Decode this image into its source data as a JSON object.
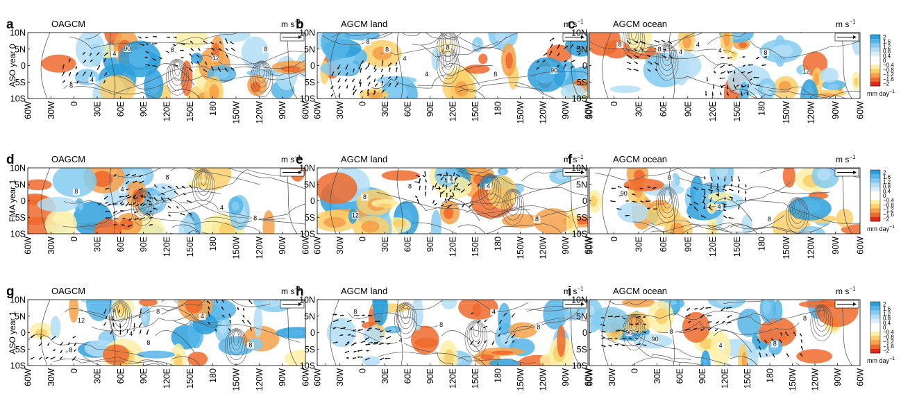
{
  "figure": {
    "row_labels": [
      "ASO year 0",
      "FMA year 1",
      "ASO year 1"
    ],
    "units_label": "m s",
    "units_exp": "−1",
    "colorbar": {
      "ticks": [
        "2",
        "1.6",
        "1.2",
        "0.8",
        "0.4",
        "0",
        "−0.4",
        "−0.8",
        "−1.2",
        "−1.6",
        "−2"
      ],
      "unit_label": "mm day",
      "unit_exp": "−1",
      "colors_top_to_bottom": [
        "#2c9fdb",
        "#55b5e8",
        "#84cbf0",
        "#b3def5",
        "#d8eefa",
        "#ffffff",
        "#ffffff",
        "#fdf0a6",
        "#fbcf6a",
        "#f6a14a",
        "#ee6a2d",
        "#e0281f"
      ]
    },
    "vector_colors": {
      "wind": "#000000",
      "contour": "#555555",
      "land": "#444444"
    }
  },
  "chart_data": [
    {
      "label": "a",
      "title": "OAGCM",
      "type": "heatmap",
      "x_ticks": [
        "60W",
        "30W",
        "0",
        "30E",
        "60E",
        "90E",
        "120E",
        "150E",
        "180",
        "150W",
        "120W",
        "90W",
        "60W"
      ],
      "y_ticks": [
        "10N",
        "5N",
        "0",
        "5S",
        "10S"
      ],
      "contour_labels": [
        "8",
        "4",
        "8",
        "12",
        "8",
        "4",
        "90"
      ]
    },
    {
      "label": "b",
      "title": "AGCM land",
      "type": "heatmap",
      "x_ticks": [
        "60W",
        "30W",
        "0",
        "30E",
        "60E",
        "90E",
        "120E",
        "150E",
        "180",
        "150W",
        "120W",
        "90W",
        "60W"
      ],
      "y_ticks": [
        "10N",
        "5N",
        "0",
        "5S",
        "10S"
      ],
      "contour_labels": [
        "8",
        "4",
        "8",
        "8",
        "90",
        "8",
        "4"
      ]
    },
    {
      "label": "c",
      "title": "AGCM ocean",
      "type": "heatmap",
      "x_ticks": [
        "30W",
        "0",
        "30E",
        "60E",
        "90E",
        "120E",
        "150E",
        "180",
        "150W",
        "120W",
        "90W",
        "60W"
      ],
      "y_ticks": [
        "10N",
        "5N",
        "0",
        "5S",
        "10S"
      ],
      "contour_labels": [
        "8",
        "4",
        "4",
        "8",
        "12",
        "8",
        "4"
      ]
    },
    {
      "label": "d",
      "title": "OAGCM",
      "type": "heatmap",
      "x_ticks": [
        "60W",
        "30W",
        "0",
        "30E",
        "60E",
        "90E",
        "120E",
        "150E",
        "180",
        "150W",
        "120W",
        "90W",
        "60W"
      ],
      "y_ticks": [
        "10N",
        "5N",
        "0",
        "5S",
        "10S"
      ],
      "contour_labels": [
        "8",
        "4",
        "8",
        "4",
        "8"
      ]
    },
    {
      "label": "e",
      "title": "AGCM land",
      "type": "heatmap",
      "x_ticks": [
        "60W",
        "30W",
        "0",
        "30E",
        "60E",
        "90E",
        "120E",
        "150E",
        "180",
        "150W",
        "120W",
        "90W",
        "60W"
      ],
      "y_ticks": [
        "10N",
        "5N",
        "0",
        "5S",
        "10S"
      ],
      "contour_labels": [
        "12",
        "8",
        "4",
        "4",
        "8",
        "8"
      ]
    },
    {
      "label": "f",
      "title": "AGCM ocean",
      "type": "heatmap",
      "x_ticks": [
        "30W",
        "0",
        "30E",
        "60E",
        "90E",
        "120E",
        "150E",
        "180",
        "150W",
        "120W",
        "90W",
        "60W"
      ],
      "y_ticks": [
        "10N",
        "5N",
        "0",
        "5S",
        "10S"
      ],
      "contour_labels": [
        "90",
        "8",
        "4",
        "8"
      ]
    },
    {
      "label": "g",
      "title": "OAGCM",
      "type": "heatmap",
      "x_ticks": [
        "60W",
        "30W",
        "0",
        "30E",
        "60E",
        "90E",
        "120E",
        "150E",
        "180",
        "150W",
        "120W",
        "90W",
        "60W"
      ],
      "y_ticks": [
        "10N",
        "5N",
        "0",
        "5S",
        "10S"
      ],
      "contour_labels": [
        "8",
        "4",
        "8",
        "4",
        "8",
        "12",
        "8"
      ]
    },
    {
      "label": "h",
      "title": "AGCM land",
      "type": "heatmap",
      "x_ticks": [
        "60W",
        "30W",
        "0",
        "30E",
        "60E",
        "90E",
        "120E",
        "150E",
        "180",
        "150W",
        "120W",
        "90W",
        "60W"
      ],
      "y_ticks": [
        "10N",
        "5N",
        "0",
        "5S",
        "10S"
      ],
      "contour_labels": [
        "8",
        "4",
        "8",
        "4",
        "8"
      ]
    },
    {
      "label": "i",
      "title": "AGCM ocean",
      "type": "heatmap",
      "x_ticks": [
        "60W",
        "30W",
        "0",
        "30E",
        "60E",
        "90E",
        "120E",
        "150E",
        "180",
        "150W",
        "120W",
        "90W",
        "60W"
      ],
      "y_ticks": [
        "10N",
        "5N",
        "0",
        "5S",
        "10S"
      ],
      "contour_labels": [
        "90",
        "8",
        "4",
        "8",
        "8",
        "90"
      ]
    }
  ]
}
